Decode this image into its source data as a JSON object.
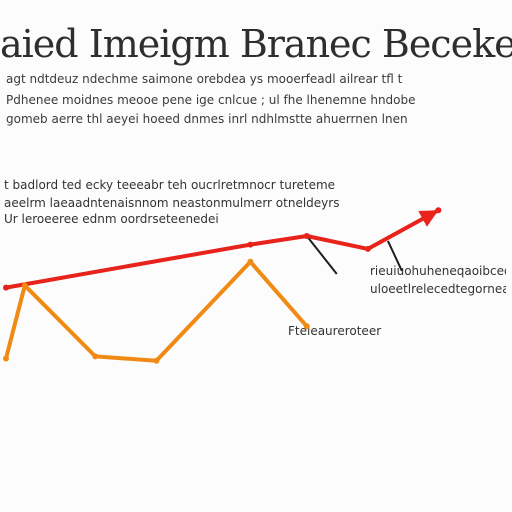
{
  "chart_data": {
    "type": "line",
    "title": "aied Imeigm Branec Becekefcie",
    "paragraph": [
      "agt ndtdeuz ndechme saimone orebdea ys mooerfeadl ailrear tfl t",
      "Pdhenee moidnes meooe pene ige cnlcue ; ul fhe lhenemne hndobe",
      "gomeb aerre thl aeyei hoeed dnmes inrl ndhlmstte ahuerrnen lnen"
    ],
    "annotations": [
      "t badlord ted ecky teeeabr teh oucrlretmnocr tureteme",
      "aeelrm laeaadntenaisnnom neastonmulmerr otneldeyrs",
      "Ur leroeeree ednm oordrseteenedei",
      "rieuiuohuheneqaoibceon",
      "uloeetlrelecedtegornearire",
      "Fteleaureroteer"
    ],
    "x": [
      0,
      1,
      2,
      3,
      4,
      5,
      6,
      7,
      8,
      9,
      10
    ],
    "xlim": [
      0,
      10
    ],
    "ylim": [
      0,
      10
    ],
    "series": [
      {
        "color": "#e8231c",
        "x": [
          0,
          5.2,
          6.4,
          7.7,
          9.2
        ],
        "values": [
          3.6,
          5.6,
          6.0,
          5.4,
          7.2
        ]
      },
      {
        "color": "#f08a14",
        "x": [
          0,
          0.4,
          1.9,
          3.2,
          5.2,
          6.4
        ],
        "values": [
          0.3,
          3.7,
          0.4,
          0.2,
          4.8,
          1.8
        ]
      }
    ],
    "callout_color": "#1e1e1e",
    "text_color": "#3a3a3a",
    "grid": false
  }
}
